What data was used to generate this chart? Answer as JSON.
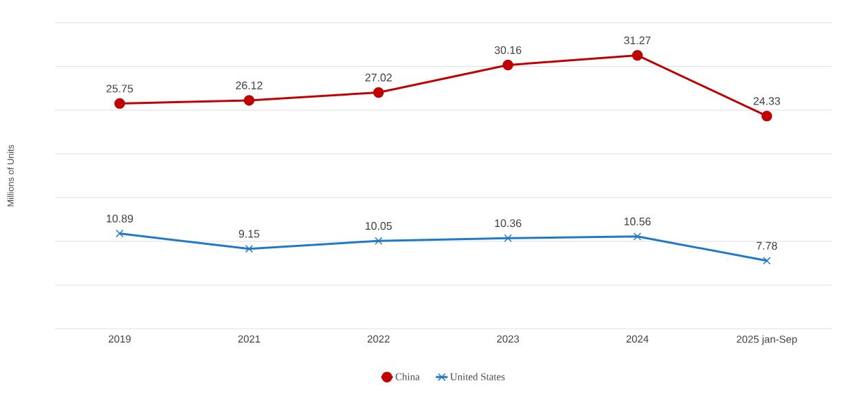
{
  "chart_data": {
    "type": "line",
    "ylabel": "Millions of Units",
    "categories": [
      "2019",
      "2021",
      "2022",
      "2023",
      "2024",
      "2025 jan-Sep"
    ],
    "series": [
      {
        "name": "China",
        "color": "#c00000",
        "marker": "circle",
        "values": [
          25.75,
          26.12,
          27.02,
          30.16,
          31.27,
          24.33
        ]
      },
      {
        "name": "United States",
        "color": "#1f78c8",
        "marker": "cross",
        "values": [
          10.89,
          9.15,
          10.05,
          10.36,
          10.56,
          7.78
        ]
      }
    ],
    "ylim": [
      0,
      35
    ],
    "yticks": [
      {
        "value": 0,
        "label": null
      },
      {
        "value": 5,
        "label": null
      },
      {
        "value": 10,
        "label": null
      },
      {
        "value": 15,
        "label": null
      },
      {
        "value": 20,
        "label": null
      },
      {
        "value": 25,
        "label": null
      },
      {
        "value": 30,
        "label": null
      },
      {
        "value": 35,
        "label": null
      }
    ],
    "tick_labels": "x",
    "grid": "y",
    "data_labels": true,
    "legend": "bottom",
    "line_style": "solid"
  }
}
